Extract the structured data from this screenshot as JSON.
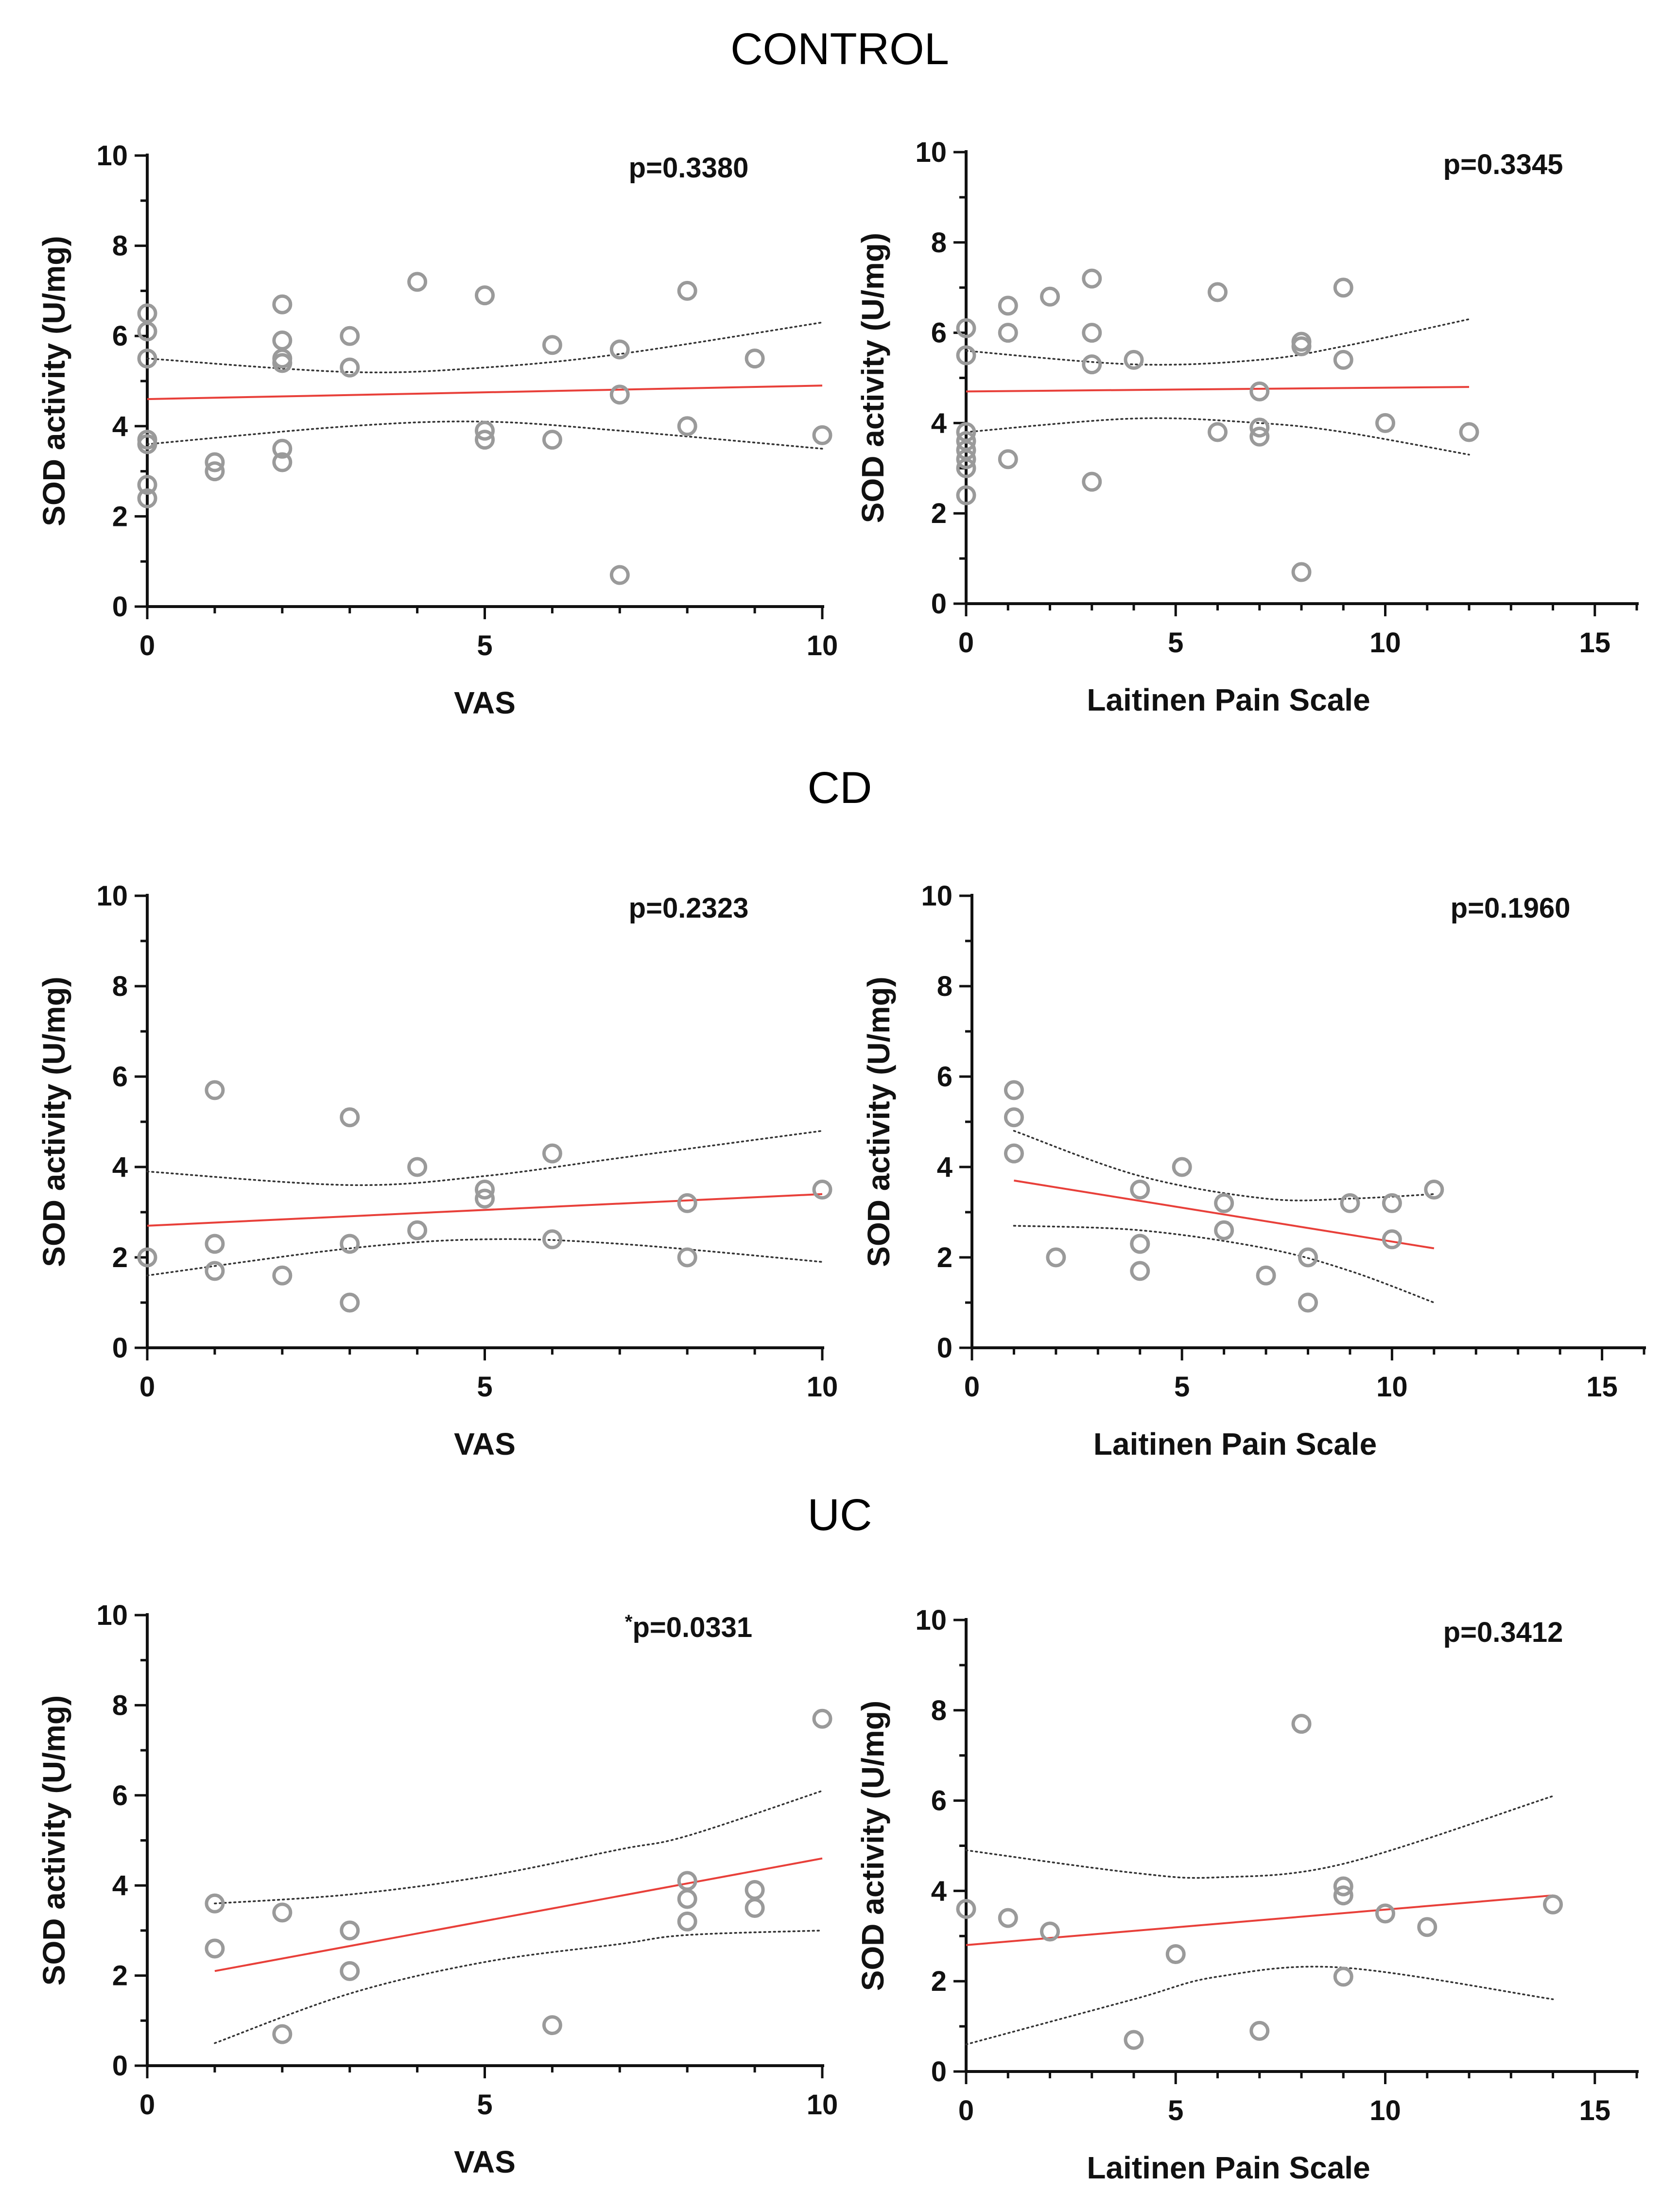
{
  "sections": [
    {
      "title": "CONTROL"
    },
    {
      "title": "CD"
    },
    {
      "title": "UC"
    }
  ],
  "chart_data": [
    {
      "type": "scatter",
      "group": "CONTROL",
      "xlabel": "VAS",
      "ylabel": "SOD activity (U/mg)",
      "p_value": "p=0.3380",
      "xlim": [
        0,
        10
      ],
      "ylim": [
        0,
        10
      ],
      "xticks": [
        0,
        5,
        10
      ],
      "yticks": [
        0,
        2,
        4,
        6,
        8,
        10
      ],
      "points": [
        [
          0,
          6.5
        ],
        [
          0,
          6.1
        ],
        [
          0,
          5.5
        ],
        [
          0,
          3.7
        ],
        [
          0,
          3.6
        ],
        [
          0,
          2.7
        ],
        [
          0,
          2.4
        ],
        [
          1,
          3.2
        ],
        [
          1,
          3.0
        ],
        [
          2,
          6.7
        ],
        [
          2,
          5.9
        ],
        [
          2,
          5.5
        ],
        [
          2,
          5.4
        ],
        [
          2,
          3.5
        ],
        [
          2,
          3.2
        ],
        [
          3,
          6.0
        ],
        [
          3,
          5.3
        ],
        [
          4,
          7.2
        ],
        [
          5,
          6.9
        ],
        [
          5,
          3.9
        ],
        [
          5,
          3.7
        ],
        [
          6,
          5.8
        ],
        [
          6,
          3.7
        ],
        [
          7,
          5.7
        ],
        [
          7,
          4.7
        ],
        [
          7,
          0.7
        ],
        [
          8,
          7.0
        ],
        [
          8,
          4.0
        ],
        [
          9,
          5.5
        ],
        [
          10,
          3.8
        ]
      ],
      "fit": [
        [
          0,
          4.6
        ],
        [
          10,
          4.9
        ]
      ],
      "ci_upper": [
        [
          0,
          5.5
        ],
        [
          3,
          5.2
        ],
        [
          5,
          5.3
        ],
        [
          7,
          5.6
        ],
        [
          10,
          6.3
        ]
      ],
      "ci_lower": [
        [
          0,
          3.6
        ],
        [
          3,
          4.0
        ],
        [
          5,
          4.1
        ],
        [
          7,
          3.9
        ],
        [
          10,
          3.5
        ]
      ]
    },
    {
      "type": "scatter",
      "group": "CONTROL",
      "xlabel": "Laitinen Pain Scale",
      "ylabel": "SOD activity (U/mg)",
      "p_value": "p=0.3345",
      "xlim": [
        0,
        16
      ],
      "ylim": [
        0,
        10
      ],
      "xticks": [
        0,
        5,
        10,
        15
      ],
      "yticks": [
        0,
        2,
        4,
        6,
        8,
        10
      ],
      "points": [
        [
          0,
          6.1
        ],
        [
          0,
          5.5
        ],
        [
          0,
          3.8
        ],
        [
          0,
          3.6
        ],
        [
          0,
          3.4
        ],
        [
          0,
          3.2
        ],
        [
          0,
          3.0
        ],
        [
          0,
          2.4
        ],
        [
          1,
          6.6
        ],
        [
          1,
          6.0
        ],
        [
          1,
          3.2
        ],
        [
          2,
          6.8
        ],
        [
          3,
          7.2
        ],
        [
          3,
          6.0
        ],
        [
          3,
          5.3
        ],
        [
          3,
          2.7
        ],
        [
          4,
          5.4
        ],
        [
          6,
          6.9
        ],
        [
          6,
          3.8
        ],
        [
          7,
          4.7
        ],
        [
          7,
          3.9
        ],
        [
          7,
          3.7
        ],
        [
          8,
          5.8
        ],
        [
          8,
          5.7
        ],
        [
          8,
          0.7
        ],
        [
          9,
          7.0
        ],
        [
          9,
          5.4
        ],
        [
          10,
          4.0
        ],
        [
          12,
          3.8
        ]
      ],
      "fit": [
        [
          0,
          4.7
        ],
        [
          12,
          4.8
        ]
      ],
      "ci_upper": [
        [
          0,
          5.6
        ],
        [
          4,
          5.3
        ],
        [
          7,
          5.4
        ],
        [
          9,
          5.7
        ],
        [
          12,
          6.3
        ]
      ],
      "ci_lower": [
        [
          0,
          3.8
        ],
        [
          4,
          4.1
        ],
        [
          7,
          4.0
        ],
        [
          9,
          3.8
        ],
        [
          12,
          3.3
        ]
      ]
    },
    {
      "type": "scatter",
      "group": "CD",
      "xlabel": "VAS",
      "ylabel": "SOD activity (U/mg)",
      "p_value": "p=0.2323",
      "xlim": [
        0,
        10
      ],
      "ylim": [
        0,
        10
      ],
      "xticks": [
        0,
        5,
        10
      ],
      "yticks": [
        0,
        2,
        4,
        6,
        8,
        10
      ],
      "points": [
        [
          0,
          2.0
        ],
        [
          1,
          5.7
        ],
        [
          1,
          2.3
        ],
        [
          1,
          1.7
        ],
        [
          2,
          1.6
        ],
        [
          3,
          5.1
        ],
        [
          3,
          2.3
        ],
        [
          3,
          1.0
        ],
        [
          4,
          4.0
        ],
        [
          4,
          2.6
        ],
        [
          5,
          3.5
        ],
        [
          5,
          3.3
        ],
        [
          6,
          4.3
        ],
        [
          6,
          2.4
        ],
        [
          8,
          3.2
        ],
        [
          8,
          2.0
        ],
        [
          10,
          3.5
        ]
      ],
      "fit": [
        [
          0,
          2.7
        ],
        [
          10,
          3.4
        ]
      ],
      "ci_upper": [
        [
          0,
          3.9
        ],
        [
          3,
          3.6
        ],
        [
          5,
          3.8
        ],
        [
          7,
          4.2
        ],
        [
          10,
          4.8
        ]
      ],
      "ci_lower": [
        [
          0,
          1.6
        ],
        [
          3,
          2.2
        ],
        [
          5,
          2.4
        ],
        [
          7,
          2.3
        ],
        [
          10,
          1.9
        ]
      ]
    },
    {
      "type": "scatter",
      "group": "CD",
      "xlabel": "Laitinen Pain Scale",
      "ylabel": "SOD activity (U/mg)",
      "p_value": "p=0.1960",
      "xlim": [
        0,
        16
      ],
      "ylim": [
        0,
        10
      ],
      "xticks": [
        0,
        5,
        10,
        15
      ],
      "yticks": [
        0,
        2,
        4,
        6,
        8,
        10
      ],
      "points": [
        [
          1,
          5.7
        ],
        [
          1,
          5.1
        ],
        [
          1,
          4.3
        ],
        [
          2,
          2.0
        ],
        [
          4,
          3.5
        ],
        [
          4,
          2.3
        ],
        [
          4,
          2.3
        ],
        [
          4,
          1.7
        ],
        [
          5,
          4.0
        ],
        [
          6,
          3.2
        ],
        [
          6,
          2.6
        ],
        [
          7,
          1.6
        ],
        [
          8,
          2.0
        ],
        [
          8,
          1.0
        ],
        [
          9,
          3.2
        ],
        [
          10,
          3.2
        ],
        [
          10,
          2.4
        ],
        [
          11,
          3.5
        ]
      ],
      "fit": [
        [
          1,
          3.7
        ],
        [
          11,
          2.2
        ]
      ],
      "ci_upper": [
        [
          1,
          4.8
        ],
        [
          4,
          3.8
        ],
        [
          7,
          3.3
        ],
        [
          9,
          3.3
        ],
        [
          11,
          3.4
        ]
      ],
      "ci_lower": [
        [
          1,
          2.7
        ],
        [
          4,
          2.6
        ],
        [
          7,
          2.2
        ],
        [
          9,
          1.7
        ],
        [
          11,
          1.0
        ]
      ]
    },
    {
      "type": "scatter",
      "group": "UC",
      "xlabel": "VAS",
      "ylabel": "SOD activity (U/mg)",
      "p_value": "p=0.0331",
      "significance": "*",
      "xlim": [
        0,
        10
      ],
      "ylim": [
        0,
        10
      ],
      "xticks": [
        0,
        5,
        10
      ],
      "yticks": [
        0,
        2,
        4,
        6,
        8,
        10
      ],
      "points": [
        [
          1,
          3.6
        ],
        [
          1,
          2.6
        ],
        [
          2,
          3.4
        ],
        [
          2,
          0.7
        ],
        [
          3,
          3.0
        ],
        [
          3,
          2.1
        ],
        [
          6,
          0.9
        ],
        [
          8,
          4.1
        ],
        [
          8,
          3.7
        ],
        [
          8,
          3.2
        ],
        [
          9,
          3.9
        ],
        [
          9,
          3.5
        ],
        [
          10,
          7.7
        ]
      ],
      "fit": [
        [
          1,
          2.1
        ],
        [
          10,
          4.6
        ]
      ],
      "ci_upper": [
        [
          1,
          3.6
        ],
        [
          3,
          3.8
        ],
        [
          5,
          4.2
        ],
        [
          7,
          4.8
        ],
        [
          8,
          5.1
        ],
        [
          10,
          6.1
        ]
      ],
      "ci_lower": [
        [
          1,
          0.5
        ],
        [
          3,
          1.6
        ],
        [
          5,
          2.3
        ],
        [
          7,
          2.7
        ],
        [
          8,
          2.9
        ],
        [
          10,
          3.0
        ]
      ]
    },
    {
      "type": "scatter",
      "group": "UC",
      "xlabel": "Laitinen Pain Scale",
      "ylabel": "SOD activity (U/mg)",
      "p_value": "p=0.3412",
      "xlim": [
        0,
        16
      ],
      "ylim": [
        0,
        10
      ],
      "xticks": [
        0,
        5,
        10,
        15
      ],
      "yticks": [
        0,
        2,
        4,
        6,
        8,
        10
      ],
      "points": [
        [
          0,
          3.6
        ],
        [
          1,
          3.4
        ],
        [
          2,
          3.1
        ],
        [
          4,
          0.7
        ],
        [
          5,
          2.6
        ],
        [
          7,
          0.9
        ],
        [
          8,
          7.7
        ],
        [
          9,
          4.1
        ],
        [
          9,
          3.9
        ],
        [
          9,
          2.1
        ],
        [
          10,
          3.5
        ],
        [
          11,
          3.2
        ],
        [
          14,
          3.7
        ]
      ],
      "fit": [
        [
          0,
          2.8
        ],
        [
          14,
          3.9
        ]
      ],
      "ci_upper": [
        [
          0,
          4.9
        ],
        [
          4,
          4.4
        ],
        [
          6,
          4.3
        ],
        [
          9,
          4.6
        ],
        [
          14,
          6.1
        ]
      ],
      "ci_lower": [
        [
          0,
          0.6
        ],
        [
          4,
          1.6
        ],
        [
          6,
          2.1
        ],
        [
          9,
          2.3
        ],
        [
          14,
          1.6
        ]
      ]
    }
  ]
}
